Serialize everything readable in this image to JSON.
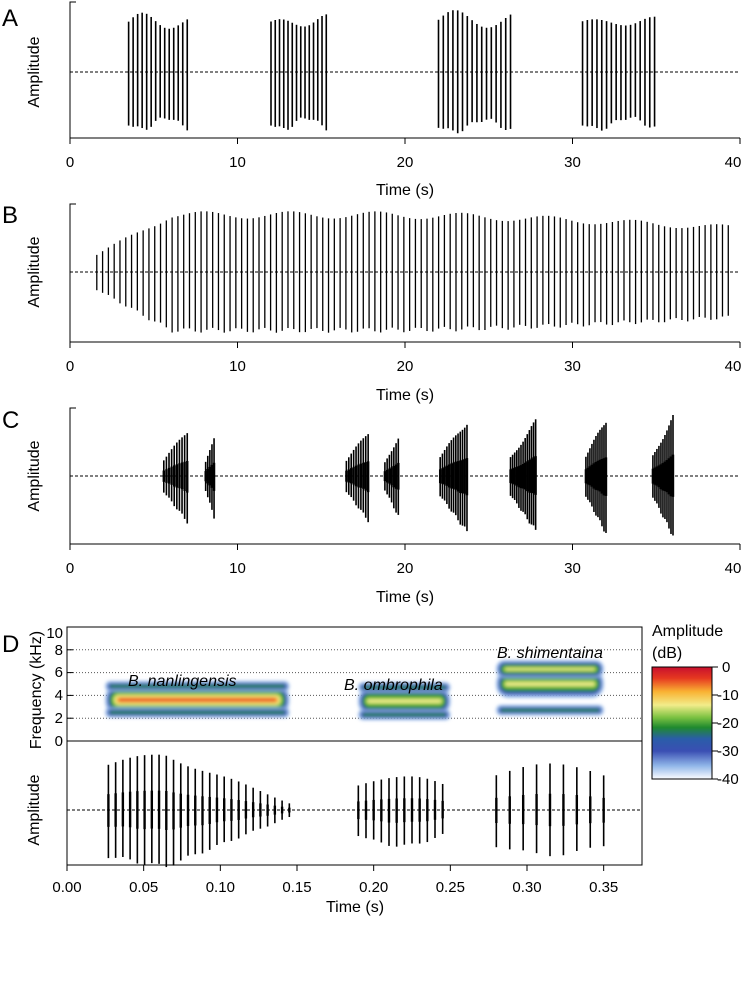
{
  "chart_data": [
    {
      "panel": "A",
      "type": "waveform",
      "ylabel": "Amplitude",
      "xlabel": "Time (s)",
      "xlim": [
        0,
        40
      ],
      "xticks": [
        "0",
        "10",
        "20",
        "30",
        "40"
      ],
      "pulse_trains": [
        {
          "start": 3.5,
          "end": 7.0,
          "pulses": 14,
          "amplitude": 0.93
        },
        {
          "start": 12.0,
          "end": 15.3,
          "pulses": 14,
          "amplitude": 0.93
        },
        {
          "start": 22.0,
          "end": 26.3,
          "pulses": 16,
          "amplitude": 0.97
        },
        {
          "start": 30.6,
          "end": 34.9,
          "pulses": 16,
          "amplitude": 0.93
        }
      ]
    },
    {
      "panel": "B",
      "type": "waveform",
      "ylabel": "Amplitude",
      "xlabel": "Time (s)",
      "xlim": [
        0,
        40
      ],
      "xticks": [
        "0",
        "10",
        "20",
        "30",
        "40"
      ],
      "pulse_trains": [
        {
          "start": 1.6,
          "end": 39.3,
          "pulses": 110,
          "amplitude": 0.92
        }
      ]
    },
    {
      "panel": "C",
      "type": "waveform",
      "ylabel": "Amplitude",
      "xlabel": "Time (s)",
      "xlim": [
        0,
        40
      ],
      "xticks": [
        "0",
        "10",
        "20",
        "30",
        "40"
      ],
      "pulse_trains": [
        {
          "start": 5.6,
          "end": 7.0,
          "pulses": 10,
          "amplitude": 0.72
        },
        {
          "start": 8.1,
          "end": 8.6,
          "pulses": 5,
          "amplitude": 0.65
        },
        {
          "start": 16.5,
          "end": 17.8,
          "pulses": 10,
          "amplitude": 0.7
        },
        {
          "start": 18.8,
          "end": 19.6,
          "pulses": 7,
          "amplitude": 0.63
        },
        {
          "start": 22.1,
          "end": 23.7,
          "pulses": 13,
          "amplitude": 0.88
        },
        {
          "start": 26.3,
          "end": 27.8,
          "pulses": 13,
          "amplitude": 0.86
        },
        {
          "start": 30.8,
          "end": 32.0,
          "pulses": 11,
          "amplitude": 0.9
        },
        {
          "start": 34.8,
          "end": 36.0,
          "pulses": 11,
          "amplitude": 0.94
        }
      ]
    },
    {
      "panel": "D",
      "type": "heatmap",
      "subtitle": "spectrogram",
      "ylabel": "Frequency (kHz)",
      "ylim": [
        0,
        10
      ],
      "yticks": [
        "0",
        "2",
        "4",
        "6",
        "8",
        "10"
      ],
      "xlim": [
        0,
        0.375
      ],
      "colorbar": {
        "title": "Amplitude",
        "units": "(dB)",
        "ticks": [
          "0",
          "-10",
          "-20",
          "-30",
          "-40"
        ],
        "range": [
          -40,
          0
        ],
        "colors": [
          "#fcfdff",
          "#8fb5e8",
          "#3a4fb3",
          "#1f8a2e",
          "#7cc242",
          "#f2ec8a",
          "#f9b233",
          "#e63820",
          "#c8102e"
        ]
      },
      "species": [
        {
          "name": "B. nanlingensis",
          "start": 0.025,
          "end": 0.145,
          "bands_khz": [
            3.6,
            2.5,
            4.8
          ],
          "peak_db": -2
        },
        {
          "name": "B. ombrophila",
          "start": 0.19,
          "end": 0.25,
          "bands_khz": [
            3.5,
            2.3,
            4.7
          ],
          "peak_db": -14
        },
        {
          "name": "B. shimentaina",
          "start": 0.28,
          "end": 0.35,
          "bands_khz": [
            5.0,
            2.7,
            6.3
          ],
          "peak_db": -11
        }
      ]
    },
    {
      "panel": "D",
      "type": "waveform",
      "ylabel": "Amplitude",
      "xlabel": "Time (s)",
      "xlim": [
        0,
        0.375
      ],
      "xticks": [
        "0.00",
        "0.05",
        "0.10",
        "0.15",
        "0.20",
        "0.25",
        "0.30",
        "0.35"
      ],
      "pulse_trains": [
        {
          "start": 0.027,
          "end": 0.145,
          "pulses": 26,
          "amplitude": 0.97
        },
        {
          "start": 0.19,
          "end": 0.245,
          "pulses": 12,
          "amplitude": 0.6
        },
        {
          "start": 0.28,
          "end": 0.35,
          "pulses": 9,
          "amplitude": 0.75
        }
      ]
    }
  ]
}
